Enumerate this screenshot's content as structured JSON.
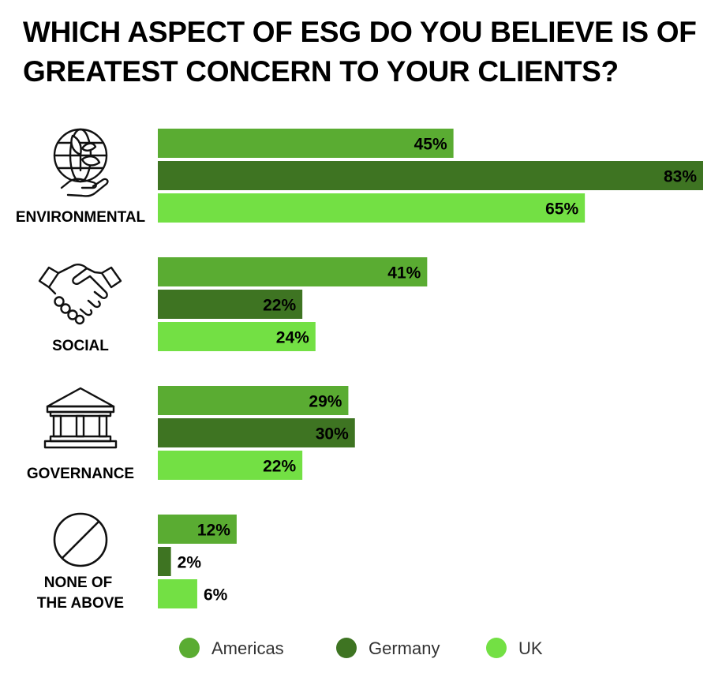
{
  "colors": {
    "americas": "#5aac32",
    "germany": "#3e7422",
    "uk": "#73e044",
    "icon": "#111111"
  },
  "chart_data": {
    "type": "bar",
    "orientation": "horizontal",
    "title": "WHICH ASPECT OF ESG DO YOU BELIEVE IS OF GREATEST CONCERN TO YOUR CLIENTS?",
    "categories": [
      {
        "label_lines": [
          "ENVIRONMENTAL"
        ],
        "icon": "globe-plant-hand-icon"
      },
      {
        "label_lines": [
          "SOCIAL"
        ],
        "icon": "handshake-icon"
      },
      {
        "label_lines": [
          "GOVERNANCE"
        ],
        "icon": "bank-building-icon"
      },
      {
        "label_lines": [
          "NONE OF",
          "THE ABOVE"
        ],
        "icon": "prohibited-icon"
      }
    ],
    "series": [
      {
        "name": "Americas",
        "color": "#5aac32",
        "values": [
          45,
          41,
          29,
          12
        ]
      },
      {
        "name": "Germany",
        "color": "#3e7422",
        "values": [
          83,
          22,
          30,
          2
        ]
      },
      {
        "name": "UK",
        "color": "#73e044",
        "values": [
          65,
          24,
          22,
          6
        ]
      }
    ],
    "value_suffix": "%",
    "xlim": [
      0,
      83
    ],
    "grid": false,
    "legend": "bottom-center"
  }
}
